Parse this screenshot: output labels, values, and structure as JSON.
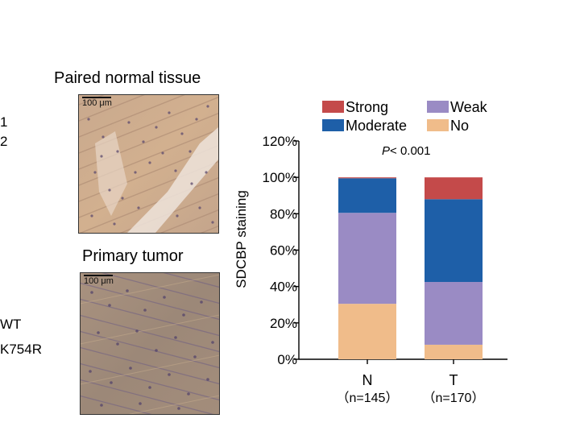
{
  "left_labels": [
    "1",
    "2",
    "WT",
    "K754R"
  ],
  "images": {
    "normal_title": "Paired normal tissue",
    "tumor_title": "Primary tumor",
    "scalebar_text": "100 μm"
  },
  "chart_data": {
    "type": "bar",
    "stacked": true,
    "ylabel": "SDCBP staining",
    "ylim": [
      0,
      120
    ],
    "yticks": [
      "0%",
      "20%",
      "40%",
      "60%",
      "80%",
      "100%",
      "120%"
    ],
    "categories": [
      "N",
      "T"
    ],
    "category_sublabels": [
      "（n=145）",
      "（n=170）"
    ],
    "annotation": {
      "prefix": "P",
      "text": "< 0.001"
    },
    "legend_position": "top",
    "series": [
      {
        "name": "No",
        "color": "#F0BC8A",
        "values": [
          30.5,
          8
        ]
      },
      {
        "name": "Weak",
        "color": "#9A8BC4",
        "values": [
          50,
          34.5
        ]
      },
      {
        "name": "Moderate",
        "color": "#1E5FA8",
        "values": [
          19,
          45.5
        ]
      },
      {
        "name": "Strong",
        "color": "#C44A4A",
        "values": [
          0.5,
          12
        ]
      }
    ],
    "legend_order": [
      "Strong",
      "Weak",
      "Moderate",
      "No"
    ]
  }
}
